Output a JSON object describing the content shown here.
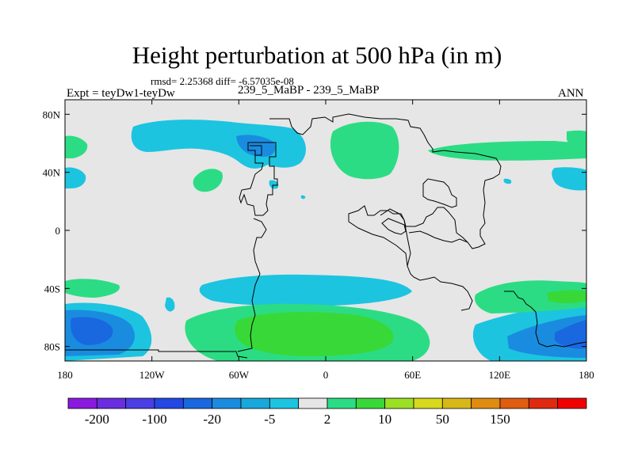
{
  "title": "Height perturbation at 500 hPa (in m)",
  "stats": "rmsd= 2.25368 diff= -6.57035e-08",
  "left_label": "Expt = teyDw1-teyDw",
  "center_label": "239_5_MaBP - 239_5_MaBP",
  "right_label": "ANN",
  "axes": {
    "x_ticks": [
      "180",
      "120W",
      "60W",
      "0",
      "60E",
      "120E",
      "180"
    ],
    "y_ticks": [
      "80N",
      "40N",
      "0",
      "40S",
      "80S"
    ]
  },
  "colorbar": {
    "labels": [
      "-200",
      "-100",
      "-20",
      "-5",
      "2",
      "10",
      "50",
      "150"
    ],
    "colors": [
      "#8a1adf",
      "#6a2ee0",
      "#4a3ee4",
      "#2448e4",
      "#1a68e0",
      "#1a8ce0",
      "#18a8dc",
      "#1cc4e0",
      "#e6e6e6",
      "#2cdc84",
      "#38d838",
      "#9ce024",
      "#d8d81c",
      "#d8b818",
      "#e08c10",
      "#e05c10",
      "#e02a10",
      "#f00000"
    ]
  },
  "colors": {
    "land_background": "#e6e6e6",
    "field_blue_light": "#1cc4e0",
    "field_blue_mid": "#1a8ce0",
    "field_blue_dark": "#1a68e0",
    "field_green_light": "#2cdc84",
    "field_green_mid": "#38d838"
  }
}
